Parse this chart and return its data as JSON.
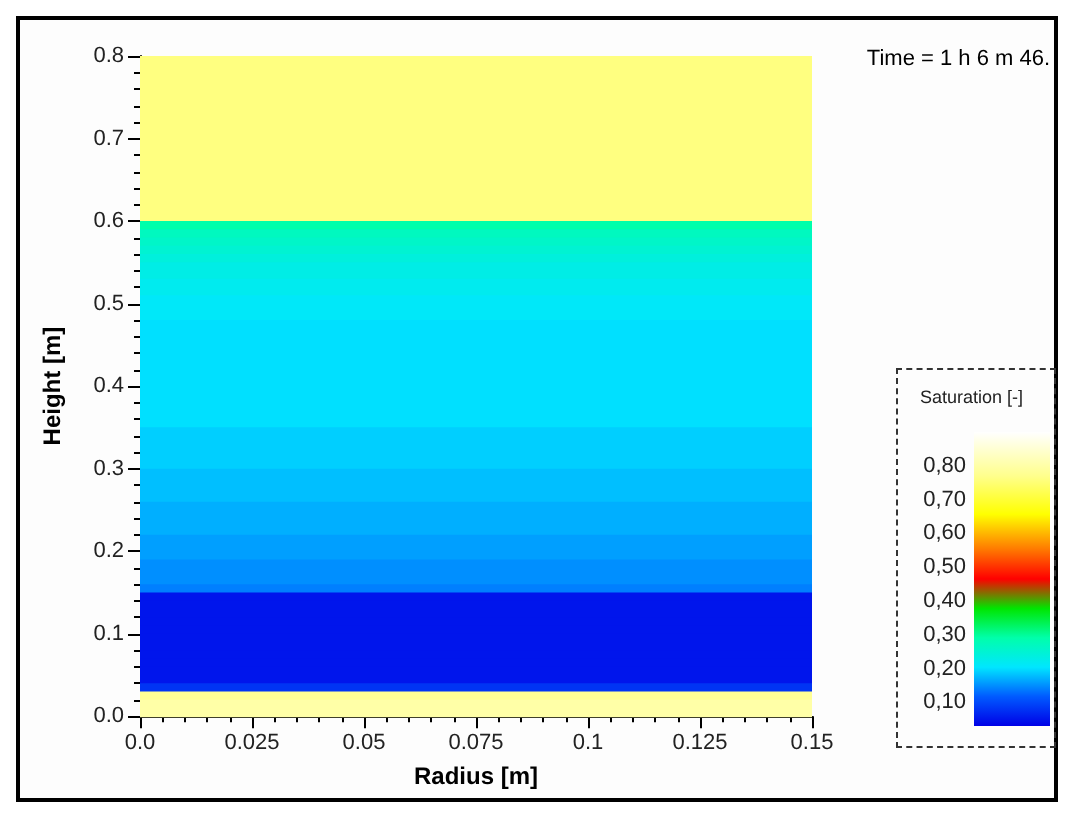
{
  "chart_data": {
    "type": "heatmap",
    "xlabel": "Radius [m]",
    "ylabel": "Height [m]",
    "clabel": "Saturation [-]",
    "annotations": [
      "Time = 1 h 6 m 46."
    ],
    "xlim": [
      0,
      0.15
    ],
    "xticks": [
      {
        "value": 0,
        "label": "0.0"
      },
      0.025,
      0.05,
      0.075,
      0.1,
      0.125,
      0.15
    ],
    "ylim": [
      0,
      0.8
    ],
    "yticks": [
      {
        "value": 0,
        "label": "0.0"
      },
      0.1,
      0.2,
      0.3,
      0.4,
      0.5,
      0.6,
      0.7,
      0.8
    ],
    "clim": [
      0.03,
      0.9
    ],
    "cticks": [
      {
        "value": 0.1,
        "label": "0,10"
      },
      {
        "value": 0.2,
        "label": "0,20"
      },
      {
        "value": 0.3,
        "label": "0,30"
      },
      {
        "value": 0.4,
        "label": "0,40"
      },
      {
        "value": 0.5,
        "label": "0,50"
      },
      {
        "value": 0.6,
        "label": "0,60"
      },
      {
        "value": 0.7,
        "label": "0,70"
      },
      {
        "value": 0.8,
        "label": "0,80"
      }
    ],
    "cells": [
      [
        0.76
      ],
      [
        0.76
      ],
      [
        0.76
      ],
      [
        0.76
      ],
      [
        0.76
      ],
      [
        0.76
      ],
      [
        0.76
      ],
      [
        0.76
      ],
      [
        0.76
      ],
      [
        0.76
      ],
      [
        0.76
      ],
      [
        0.76
      ],
      [
        0.76
      ],
      [
        0.76
      ],
      [
        0.76
      ],
      [
        0.76
      ],
      [
        0.76
      ],
      [
        0.76
      ],
      [
        0.76
      ],
      [
        0.76
      ],
      [
        0.29
      ],
      [
        0.27
      ],
      [
        0.26
      ],
      [
        0.25
      ],
      [
        0.24
      ],
      [
        0.23
      ],
      [
        0.23
      ],
      [
        0.22
      ],
      [
        0.22
      ],
      [
        0.21
      ],
      [
        0.21
      ],
      [
        0.21
      ],
      [
        0.2
      ],
      [
        0.2
      ],
      [
        0.2
      ],
      [
        0.2
      ],
      [
        0.2
      ],
      [
        0.2
      ],
      [
        0.2
      ],
      [
        0.2
      ],
      [
        0.2
      ],
      [
        0.2
      ],
      [
        0.2
      ],
      [
        0.2
      ],
      [
        0.2
      ],
      [
        0.19
      ],
      [
        0.19
      ],
      [
        0.19
      ],
      [
        0.19
      ],
      [
        0.19
      ],
      [
        0.18
      ],
      [
        0.18
      ],
      [
        0.18
      ],
      [
        0.18
      ],
      [
        0.17
      ],
      [
        0.17
      ],
      [
        0.17
      ],
      [
        0.17
      ],
      [
        0.16
      ],
      [
        0.16
      ],
      [
        0.16
      ],
      [
        0.15
      ],
      [
        0.15
      ],
      [
        0.15
      ],
      [
        0.14
      ],
      [
        0.05
      ],
      [
        0.05
      ],
      [
        0.05
      ],
      [
        0.05
      ],
      [
        0.05
      ],
      [
        0.05
      ],
      [
        0.05
      ],
      [
        0.05
      ],
      [
        0.05
      ],
      [
        0.05
      ],
      [
        0.05
      ],
      [
        0.08
      ],
      [
        0.78
      ],
      [
        0.8
      ],
      [
        0.8
      ]
    ]
  }
}
